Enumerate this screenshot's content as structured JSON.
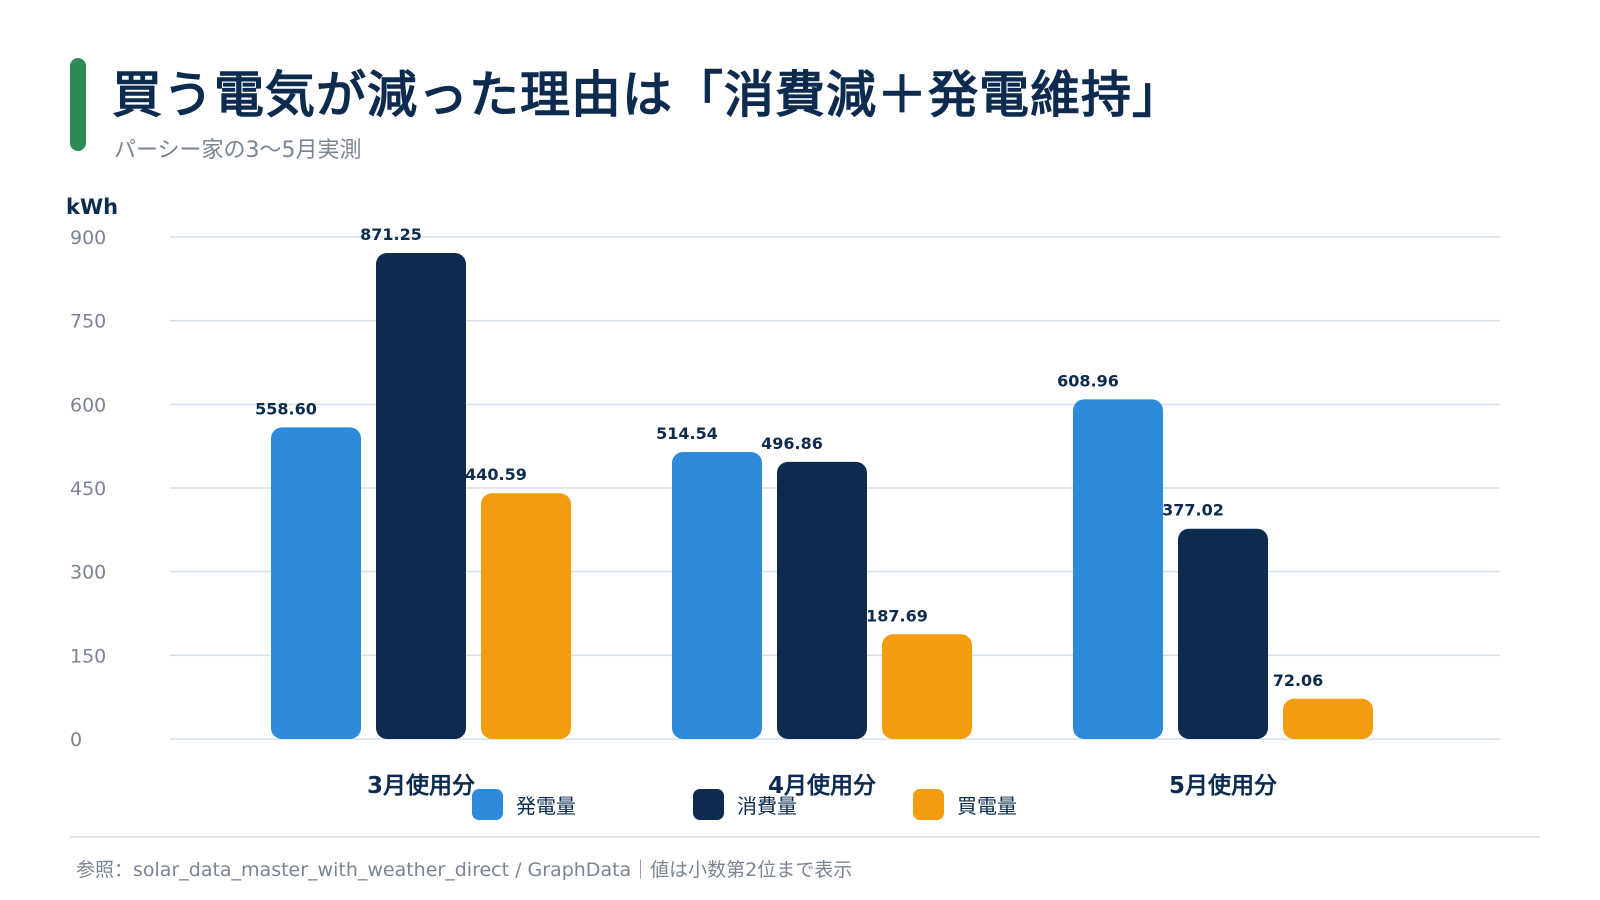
{
  "header": {
    "title": "買う電気が減った理由は「消費減＋発電維持」",
    "subtitle": "パーシー家の3〜5月実測"
  },
  "footer": {
    "note": "参照：solar_data_master_with_weather_direct / GraphData｜値は小数第2位まで表示"
  },
  "colors": {
    "accent": "#2e8b57",
    "title": "#0d2b4e",
    "generation": "#2e8bdb",
    "consumption": "#0d2b4e",
    "purchase": "#f39c0e",
    "grid": "#d6e0ea"
  },
  "chart_data": {
    "type": "bar",
    "ylabel": "kWh",
    "ylim": [
      0,
      900
    ],
    "yticks": [
      "0",
      "150",
      "300",
      "450",
      "600",
      "750",
      "900"
    ],
    "grid": true,
    "legend_position": "bottom-center",
    "categories": [
      "3月使用分",
      "4月使用分",
      "5月使用分"
    ],
    "series": [
      {
        "name": "発電量",
        "color": "#2e8bdb",
        "values": [
          558.6,
          514.54,
          608.96
        ],
        "labels": [
          "558.60",
          "514.54",
          "608.96"
        ]
      },
      {
        "name": "消費量",
        "color": "#0d2b4e",
        "values": [
          871.25,
          496.86,
          377.02
        ],
        "labels": [
          "871.25",
          "496.86",
          "377.02"
        ]
      },
      {
        "name": "買電量",
        "color": "#f39c0e",
        "values": [
          440.59,
          187.69,
          72.06
        ],
        "labels": [
          "440.59",
          "187.69",
          "72.06"
        ]
      }
    ]
  }
}
